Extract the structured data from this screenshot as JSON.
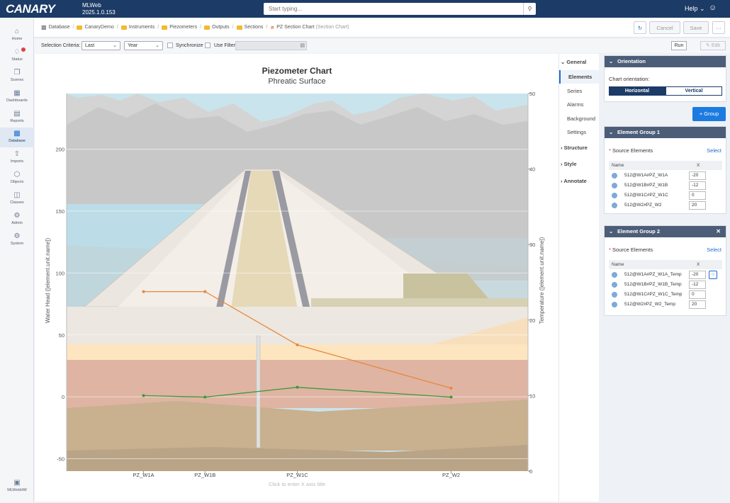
{
  "app": {
    "logo_text": "CANARY",
    "name": "MLWeb",
    "version": "2025.1.0.153"
  },
  "search": {
    "placeholder": "Start typing..."
  },
  "header": {
    "help_label": "Help"
  },
  "sidebar": {
    "items": [
      {
        "label": "Home"
      },
      {
        "label": "Status"
      },
      {
        "label": "Scenes"
      },
      {
        "label": "Dashboards"
      },
      {
        "label": "Reports"
      },
      {
        "label": "Database"
      },
      {
        "label": "Imports"
      },
      {
        "label": "Objects"
      },
      {
        "label": "Classes"
      },
      {
        "label": "Admin"
      },
      {
        "label": "System"
      }
    ],
    "footer_label": "MLWebHW"
  },
  "breadcrumb": [
    {
      "label": "Database"
    },
    {
      "label": "CanaryDemo"
    },
    {
      "label": "Instruments"
    },
    {
      "label": "Piezometers"
    },
    {
      "label": "Outputs"
    },
    {
      "label": "Sections"
    },
    {
      "label": "PZ Section Chart",
      "suffix": "(Section Chart)"
    }
  ],
  "toolbar": {
    "cancel_label": "Cancel",
    "save_label": "Save",
    "more_label": "···"
  },
  "criteria": {
    "label": "Selection Criteria:",
    "mode": "Last",
    "period": "Year",
    "synchronize_label": "Synchronize",
    "use_filter_label": "Use Filter",
    "run_label": "Run",
    "edit_label": "Edit"
  },
  "chart_data": {
    "type": "line",
    "title": "Piezometer Chart",
    "subtitle": "Phreatic Surface",
    "categories": [
      "PZ_W1A",
      "PZ_W1B",
      "PZ_W1C",
      "PZ_W2"
    ],
    "ylabel": "Water Head ([element.unit.name])",
    "y2label": "Temperature ([element.unit.name])",
    "xlabel_placeholder": "Click to enter X axis title",
    "ylim": [
      -60,
      245
    ],
    "y2lim": [
      0,
      50
    ],
    "yticks": [
      -50,
      0,
      50,
      100,
      150,
      200
    ],
    "y2ticks": [
      0,
      10,
      20,
      30,
      40,
      50
    ],
    "x_positions": [
      -20,
      -12,
      0,
      20
    ],
    "xlim": [
      -30,
      30
    ],
    "series": [
      {
        "axis": "y",
        "color": "#e8883a",
        "values": [
          85,
          85,
          42,
          7
        ]
      },
      {
        "axis": "y2",
        "color": "#3a9a3a",
        "values": [
          10.0,
          9.8,
          11.1,
          9.8
        ]
      }
    ]
  },
  "tabs": {
    "general": "General",
    "items": [
      "Elements",
      "Series",
      "Alarms",
      "Background",
      "Settings"
    ],
    "structure": "Structure",
    "style": "Style",
    "annotate": "Annotate"
  },
  "panel": {
    "orientation": {
      "title": "Orientation",
      "label": "Chart orientation:",
      "options": [
        "Horizontal",
        "Vertical"
      ],
      "selected": "Horizontal"
    },
    "group_button": "+ Group",
    "groups": [
      {
        "title": "Element Group 1",
        "source_label": "Source Elements",
        "select_label": "Select",
        "col_name": "Name",
        "col_x": "X",
        "rows": [
          {
            "name": "512@W1A#PZ_W1A",
            "x": "-20"
          },
          {
            "name": "512@W1B#PZ_W1B",
            "x": "-12"
          },
          {
            "name": "512@W1C#PZ_W1C",
            "x": "0"
          },
          {
            "name": "512@W2#PZ_W2",
            "x": "20"
          }
        ]
      },
      {
        "title": "Element Group 2",
        "source_label": "Source Elements",
        "select_label": "Select",
        "col_name": "Name",
        "col_x": "X",
        "rows": [
          {
            "name": "512@W1A#PZ_W1A_Temp",
            "x": "-20"
          },
          {
            "name": "512@W1B#PZ_W1B_Temp",
            "x": "-12"
          },
          {
            "name": "512@W1C#PZ_W1C_Temp",
            "x": "0"
          },
          {
            "name": "512@W2#PZ_W2_Temp",
            "x": "20"
          }
        ]
      }
    ]
  }
}
